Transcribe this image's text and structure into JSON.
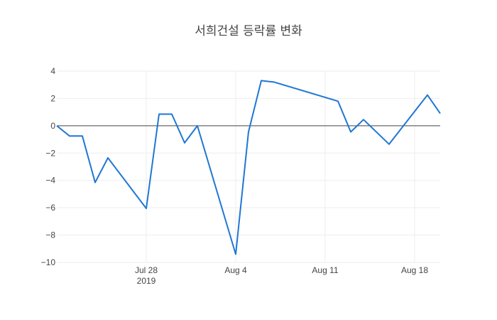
{
  "chart_data": {
    "type": "line",
    "title": "서희건설 등락률 변화",
    "xlabel": "",
    "ylabel": "",
    "xlim": [
      "2019-07-21",
      "2019-08-20"
    ],
    "ylim": [
      -10,
      4
    ],
    "grid": true,
    "legend": "none",
    "x_ticks": [
      {
        "date": "2019-07-28",
        "label": "Jul 28",
        "sublabel": "2019"
      },
      {
        "date": "2019-08-04",
        "label": "Aug 4",
        "sublabel": ""
      },
      {
        "date": "2019-08-11",
        "label": "Aug 11",
        "sublabel": ""
      },
      {
        "date": "2019-08-18",
        "label": "Aug 18",
        "sublabel": ""
      }
    ],
    "y_ticks": [
      {
        "value": 4,
        "label": "4"
      },
      {
        "value": 2,
        "label": "2"
      },
      {
        "value": 0,
        "label": "0"
      },
      {
        "value": -2,
        "label": "−2"
      },
      {
        "value": -4,
        "label": "−4"
      },
      {
        "value": -6,
        "label": "−6"
      },
      {
        "value": -8,
        "label": "−8"
      },
      {
        "value": -10,
        "label": "−10"
      }
    ],
    "series": [
      {
        "color": "#1f77d4",
        "x": [
          "2019-07-21",
          "2019-07-22",
          "2019-07-23",
          "2019-07-24",
          "2019-07-25",
          "2019-07-28",
          "2019-07-29",
          "2019-07-30",
          "2019-07-31",
          "2019-08-01",
          "2019-08-04",
          "2019-08-05",
          "2019-08-06",
          "2019-08-07",
          "2019-08-12",
          "2019-08-13",
          "2019-08-14",
          "2019-08-16",
          "2019-08-19",
          "2019-08-20"
        ],
        "y": [
          0.0,
          -0.75,
          -0.75,
          -4.15,
          -2.35,
          -6.05,
          0.85,
          0.85,
          -1.25,
          0.0,
          -9.4,
          -0.45,
          3.3,
          3.2,
          1.8,
          -0.45,
          0.45,
          -1.35,
          2.25,
          0.9
        ]
      }
    ]
  }
}
